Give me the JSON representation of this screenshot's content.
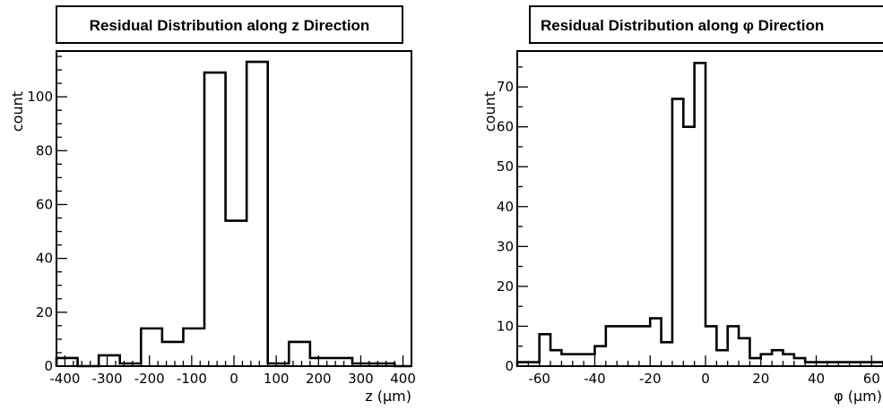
{
  "chart_data": [
    {
      "type": "histogram",
      "title": "Residual Distribution along z Direction",
      "xlabel": "z (µm)",
      "ylabel": "count",
      "xlim": [
        -420,
        420
      ],
      "ylim": [
        0,
        117
      ],
      "xticks": [
        -400,
        -300,
        -200,
        -100,
        0,
        100,
        200,
        300,
        400
      ],
      "xtick_labels": [
        "-400",
        "-300",
        "-200",
        "-100",
        "0",
        "100",
        "200",
        "300",
        "400"
      ],
      "yticks": [
        0,
        20,
        40,
        60,
        80,
        100
      ],
      "ytick_labels": [
        "0",
        "20",
        "40",
        "60",
        "80",
        "100"
      ],
      "bin_edges": [
        -420,
        -370,
        -320,
        -270,
        -220,
        -170,
        -120,
        -70,
        -20,
        30,
        80,
        130,
        180,
        230,
        280,
        330,
        380,
        420
      ],
      "counts": [
        3,
        0,
        4,
        1,
        14,
        9,
        14,
        109,
        54,
        113,
        1,
        9,
        3,
        3,
        1,
        1,
        0
      ]
    },
    {
      "type": "histogram",
      "title": "Residual Distribution along φ Direction",
      "xlabel": "φ (µm)",
      "ylabel": "count",
      "xlim": [
        -68,
        68
      ],
      "ylim": [
        0,
        79
      ],
      "xticks": [
        -60,
        -40,
        -20,
        0,
        20,
        40,
        60
      ],
      "xtick_labels": [
        "-60",
        "-40",
        "-20",
        "0",
        "20",
        "40",
        "60"
      ],
      "yticks": [
        0,
        10,
        20,
        30,
        40,
        50,
        60,
        70
      ],
      "ytick_labels": [
        "0",
        "10",
        "20",
        "30",
        "40",
        "50",
        "60",
        "70"
      ],
      "bin_edges": [
        -68,
        -63,
        -60,
        -56,
        -52,
        -48,
        -44,
        -40,
        -36,
        -32,
        -28,
        -24,
        -20,
        -16,
        -12,
        -8,
        -4,
        0,
        4,
        8,
        12,
        16,
        20,
        24,
        28,
        32,
        36,
        40,
        44,
        48,
        52,
        56,
        60,
        64,
        68
      ],
      "counts": [
        1,
        1,
        8,
        4,
        3,
        3,
        3,
        5,
        10,
        10,
        10,
        10,
        12,
        6,
        67,
        60,
        76,
        10,
        4,
        10,
        7,
        2,
        3,
        4,
        3,
        2,
        1,
        1,
        1,
        1,
        1,
        1,
        1,
        1
      ]
    }
  ]
}
